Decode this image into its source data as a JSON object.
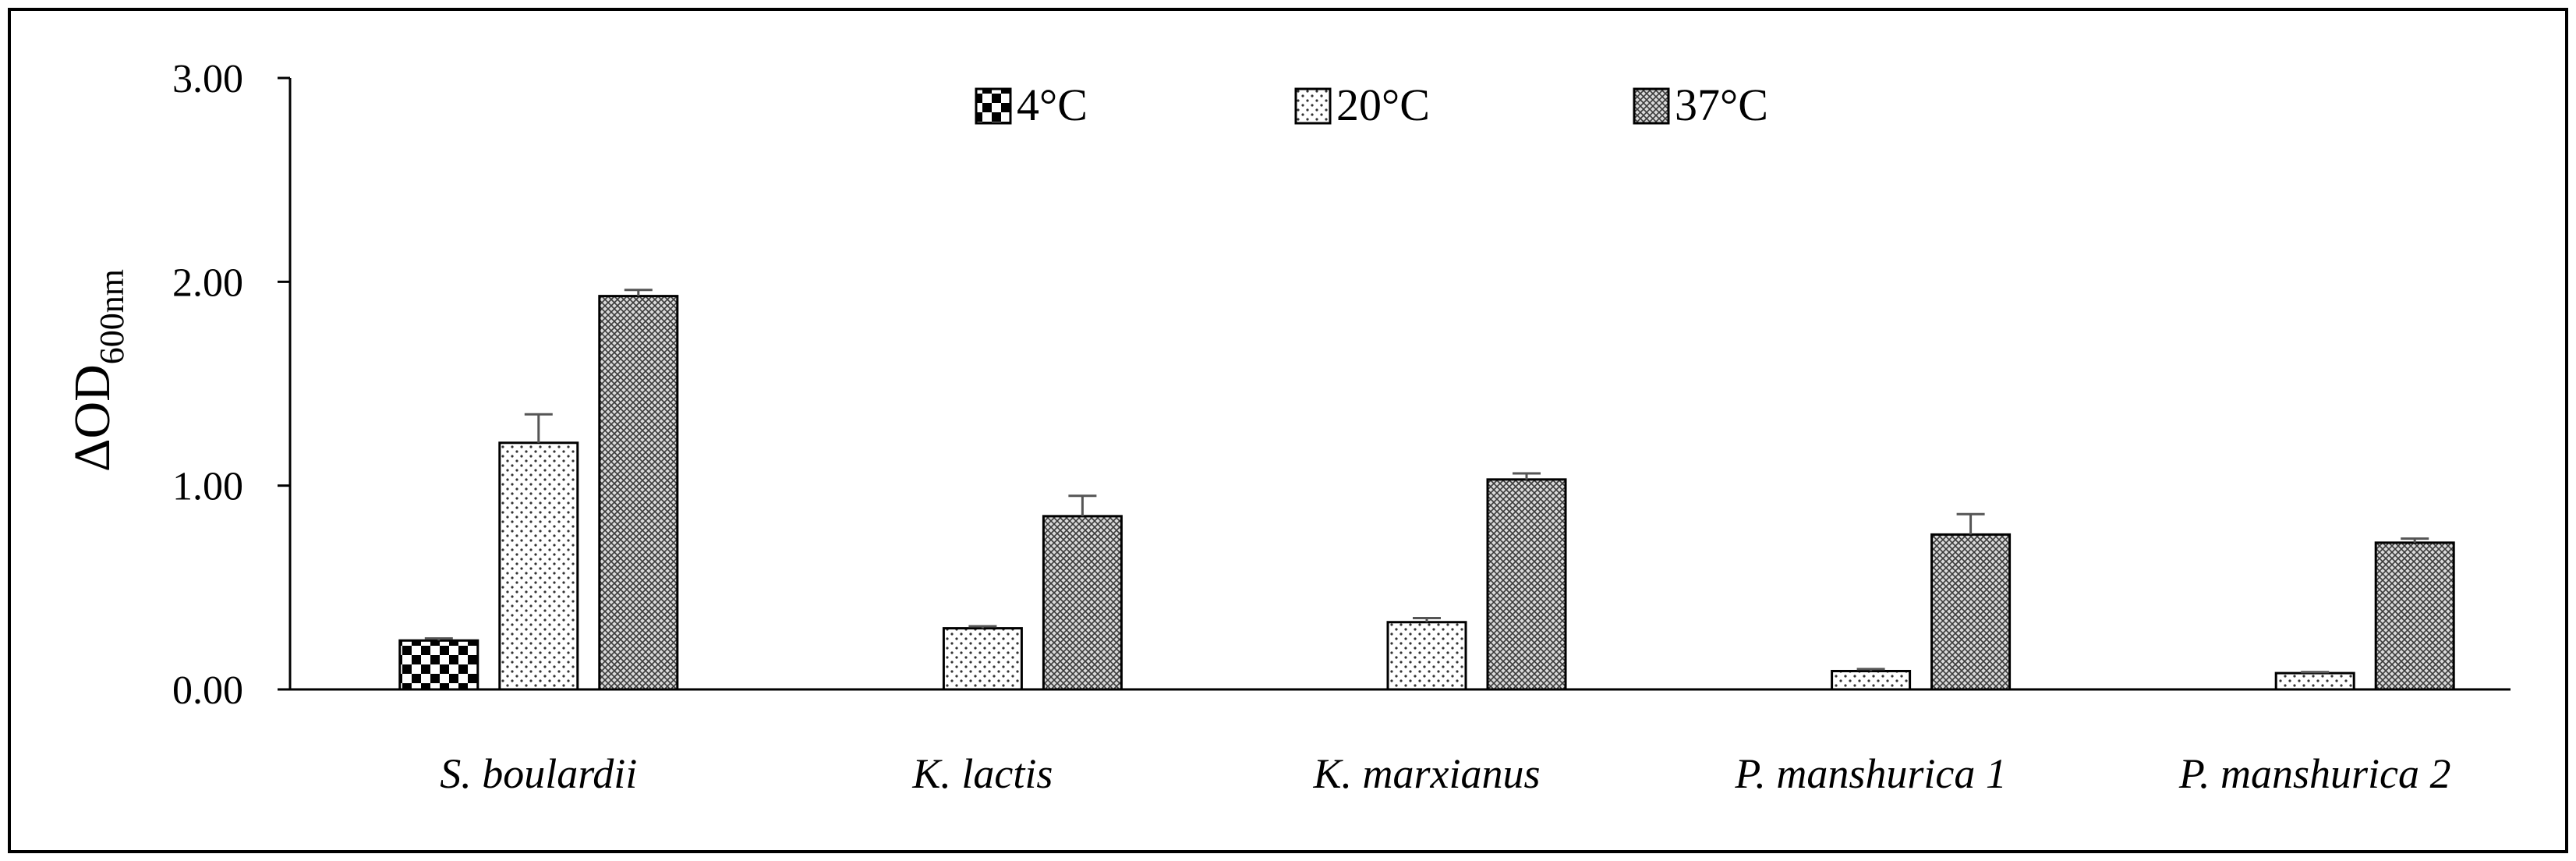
{
  "chart_data": {
    "type": "bar",
    "title": "",
    "xlabel": "",
    "ylabel": "ΔOD",
    "ylabel_subscript": "600nm",
    "ylim": [
      0,
      3
    ],
    "yticks": [
      "0.00",
      "1.00",
      "2.00",
      "3.00"
    ],
    "ytick_values": [
      0,
      1,
      2,
      3
    ],
    "grid": false,
    "legend_position": "top-center",
    "categories": [
      "S. boulardii",
      "K. lactis",
      "K. marxianus",
      "P. manshurica 1",
      "P. manshurica 2"
    ],
    "series": [
      {
        "name": "4°C",
        "pattern": "checker",
        "values": [
          0.24,
          0,
          0,
          0,
          0
        ],
        "errors": [
          0.01,
          0,
          0,
          0,
          0
        ]
      },
      {
        "name": "20°C",
        "pattern": "dots",
        "values": [
          1.21,
          0.3,
          0.33,
          0.09,
          0.08
        ],
        "errors": [
          0.14,
          0.01,
          0.02,
          0.01,
          0.005
        ]
      },
      {
        "name": "37°C",
        "pattern": "crosshatch",
        "values": [
          1.93,
          0.85,
          1.03,
          0.76,
          0.72
        ],
        "errors": [
          0.03,
          0.1,
          0.03,
          0.1,
          0.02
        ]
      }
    ]
  }
}
